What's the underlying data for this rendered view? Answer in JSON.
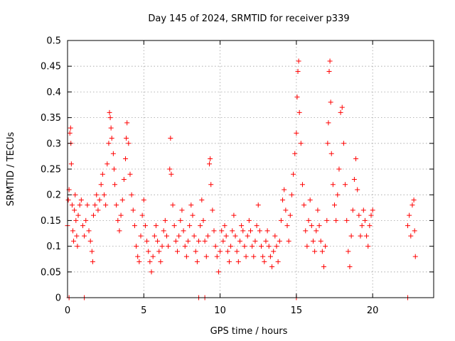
{
  "chart_data": {
    "type": "scatter",
    "title": "Day 145 of 2024, SRMTID for receiver p339",
    "xlabel": "GPS time / hours",
    "ylabel": "SRMTID / TECUs",
    "xlim": [
      0,
      24
    ],
    "ylim": [
      0,
      0.5
    ],
    "xticks": [
      0,
      5,
      10,
      15,
      20
    ],
    "xtick_labels": [
      "0",
      "5",
      "10",
      "15",
      "20"
    ],
    "yticks": [
      0,
      0.05,
      0.1,
      0.15,
      0.2,
      0.25,
      0.3,
      0.35,
      0.4,
      0.45,
      0.5
    ],
    "ytick_labels": [
      "0",
      "0.05",
      "0.1",
      "0.15",
      "0.2",
      "0.25",
      "0.3",
      "0.35",
      "0.4",
      "0.45",
      "0.5"
    ],
    "grid": true,
    "marker": "+",
    "color": "#ff0000",
    "series": [
      {
        "name": "SRMTID",
        "points": [
          [
            0.0,
            0.14
          ],
          [
            0.05,
            0.19
          ],
          [
            0.1,
            0.21
          ],
          [
            0.15,
            0.32
          ],
          [
            0.2,
            0.33
          ],
          [
            0.22,
            0.3
          ],
          [
            0.25,
            0.26
          ],
          [
            0.3,
            0.18
          ],
          [
            0.35,
            0.13
          ],
          [
            0.4,
            0.11
          ],
          [
            0.45,
            0.17
          ],
          [
            0.5,
            0.2
          ],
          [
            0.55,
            0.15
          ],
          [
            0.6,
            0.12
          ],
          [
            0.65,
            0.1
          ],
          [
            0.7,
            0.16
          ],
          [
            0.8,
            0.18
          ],
          [
            0.9,
            0.19
          ],
          [
            1.0,
            0.14
          ],
          [
            1.1,
            0.12
          ],
          [
            1.2,
            0.15
          ],
          [
            1.3,
            0.18
          ],
          [
            1.4,
            0.13
          ],
          [
            1.5,
            0.11
          ],
          [
            1.6,
            0.09
          ],
          [
            1.65,
            0.07
          ],
          [
            1.7,
            0.16
          ],
          [
            1.8,
            0.18
          ],
          [
            1.9,
            0.2
          ],
          [
            2.0,
            0.17
          ],
          [
            2.1,
            0.19
          ],
          [
            2.2,
            0.22
          ],
          [
            2.3,
            0.24
          ],
          [
            2.4,
            0.2
          ],
          [
            2.5,
            0.18
          ],
          [
            2.6,
            0.26
          ],
          [
            2.7,
            0.3
          ],
          [
            2.75,
            0.36
          ],
          [
            2.8,
            0.35
          ],
          [
            2.85,
            0.33
          ],
          [
            2.9,
            0.31
          ],
          [
            3.0,
            0.28
          ],
          [
            3.05,
            0.25
          ],
          [
            3.1,
            0.22
          ],
          [
            3.2,
            0.18
          ],
          [
            3.3,
            0.15
          ],
          [
            3.4,
            0.13
          ],
          [
            3.5,
            0.16
          ],
          [
            3.6,
            0.19
          ],
          [
            3.7,
            0.23
          ],
          [
            3.8,
            0.27
          ],
          [
            3.85,
            0.31
          ],
          [
            3.9,
            0.34
          ],
          [
            4.0,
            0.3
          ],
          [
            4.1,
            0.24
          ],
          [
            4.2,
            0.2
          ],
          [
            4.3,
            0.17
          ],
          [
            4.4,
            0.14
          ],
          [
            4.5,
            0.1
          ],
          [
            4.6,
            0.08
          ],
          [
            4.7,
            0.07
          ],
          [
            4.8,
            0.12
          ],
          [
            4.9,
            0.16
          ],
          [
            5.0,
            0.19
          ],
          [
            5.1,
            0.14
          ],
          [
            5.2,
            0.11
          ],
          [
            5.3,
            0.09
          ],
          [
            5.4,
            0.07
          ],
          [
            5.5,
            0.05
          ],
          [
            5.6,
            0.08
          ],
          [
            5.7,
            0.12
          ],
          [
            5.8,
            0.14
          ],
          [
            5.9,
            0.11
          ],
          [
            6.0,
            0.09
          ],
          [
            6.1,
            0.07
          ],
          [
            6.2,
            0.1
          ],
          [
            6.3,
            0.13
          ],
          [
            6.4,
            0.15
          ],
          [
            6.5,
            0.12
          ],
          [
            6.6,
            0.1
          ],
          [
            6.7,
            0.25
          ],
          [
            6.75,
            0.31
          ],
          [
            6.8,
            0.24
          ],
          [
            6.9,
            0.18
          ],
          [
            7.0,
            0.14
          ],
          [
            7.1,
            0.11
          ],
          [
            7.2,
            0.09
          ],
          [
            7.3,
            0.12
          ],
          [
            7.4,
            0.15
          ],
          [
            7.5,
            0.17
          ],
          [
            7.6,
            0.13
          ],
          [
            7.7,
            0.1
          ],
          [
            7.8,
            0.08
          ],
          [
            7.9,
            0.11
          ],
          [
            8.0,
            0.14
          ],
          [
            8.1,
            0.18
          ],
          [
            8.2,
            0.16
          ],
          [
            8.3,
            0.12
          ],
          [
            8.4,
            0.09
          ],
          [
            8.5,
            0.07
          ],
          [
            8.6,
            0.11
          ],
          [
            8.7,
            0.14
          ],
          [
            8.8,
            0.19
          ],
          [
            8.9,
            0.15
          ],
          [
            9.0,
            0.11
          ],
          [
            9.1,
            0.08
          ],
          [
            9.2,
            0.12
          ],
          [
            9.3,
            0.26
          ],
          [
            9.35,
            0.27
          ],
          [
            9.4,
            0.22
          ],
          [
            9.5,
            0.17
          ],
          [
            9.6,
            0.13
          ],
          [
            9.7,
            0.1
          ],
          [
            9.8,
            0.08
          ],
          [
            9.9,
            0.05
          ],
          [
            10.0,
            0.09
          ],
          [
            10.1,
            0.13
          ],
          [
            10.2,
            0.11
          ],
          [
            10.3,
            0.14
          ],
          [
            10.4,
            0.12
          ],
          [
            10.5,
            0.09
          ],
          [
            10.6,
            0.07
          ],
          [
            10.7,
            0.1
          ],
          [
            10.8,
            0.13
          ],
          [
            10.9,
            0.16
          ],
          [
            11.0,
            0.12
          ],
          [
            11.1,
            0.09
          ],
          [
            11.2,
            0.07
          ],
          [
            11.3,
            0.11
          ],
          [
            11.4,
            0.14
          ],
          [
            11.5,
            0.13
          ],
          [
            11.6,
            0.1
          ],
          [
            11.7,
            0.08
          ],
          [
            11.8,
            0.12
          ],
          [
            11.9,
            0.15
          ],
          [
            12.0,
            0.13
          ],
          [
            12.1,
            0.1
          ],
          [
            12.2,
            0.08
          ],
          [
            12.3,
            0.11
          ],
          [
            12.4,
            0.14
          ],
          [
            12.5,
            0.18
          ],
          [
            12.6,
            0.13
          ],
          [
            12.7,
            0.1
          ],
          [
            12.8,
            0.08
          ],
          [
            12.9,
            0.07
          ],
          [
            13.0,
            0.11
          ],
          [
            13.1,
            0.13
          ],
          [
            13.2,
            0.1
          ],
          [
            13.3,
            0.08
          ],
          [
            13.4,
            0.06
          ],
          [
            13.5,
            0.09
          ],
          [
            13.6,
            0.12
          ],
          [
            13.7,
            0.1
          ],
          [
            13.8,
            0.07
          ],
          [
            13.9,
            0.11
          ],
          [
            14.0,
            0.15
          ],
          [
            14.1,
            0.19
          ],
          [
            14.2,
            0.21
          ],
          [
            14.3,
            0.17
          ],
          [
            14.4,
            0.14
          ],
          [
            14.5,
            0.11
          ],
          [
            14.6,
            0.16
          ],
          [
            14.7,
            0.2
          ],
          [
            14.8,
            0.24
          ],
          [
            14.9,
            0.28
          ],
          [
            15.0,
            0.32
          ],
          [
            15.05,
            0.39
          ],
          [
            15.1,
            0.44
          ],
          [
            15.15,
            0.46
          ],
          [
            15.2,
            0.36
          ],
          [
            15.3,
            0.3
          ],
          [
            15.4,
            0.22
          ],
          [
            15.5,
            0.18
          ],
          [
            15.6,
            0.13
          ],
          [
            15.7,
            0.1
          ],
          [
            15.8,
            0.15
          ],
          [
            15.9,
            0.19
          ],
          [
            16.0,
            0.14
          ],
          [
            16.1,
            0.11
          ],
          [
            16.2,
            0.09
          ],
          [
            16.3,
            0.13
          ],
          [
            16.4,
            0.17
          ],
          [
            16.5,
            0.14
          ],
          [
            16.6,
            0.11
          ],
          [
            16.7,
            0.09
          ],
          [
            16.8,
            0.06
          ],
          [
            16.9,
            0.1
          ],
          [
            17.0,
            0.15
          ],
          [
            17.05,
            0.3
          ],
          [
            17.1,
            0.34
          ],
          [
            17.15,
            0.44
          ],
          [
            17.2,
            0.46
          ],
          [
            17.25,
            0.38
          ],
          [
            17.3,
            0.28
          ],
          [
            17.4,
            0.22
          ],
          [
            17.5,
            0.18
          ],
          [
            17.6,
            0.15
          ],
          [
            17.7,
            0.2
          ],
          [
            17.8,
            0.25
          ],
          [
            17.9,
            0.36
          ],
          [
            18.0,
            0.37
          ],
          [
            18.1,
            0.3
          ],
          [
            18.2,
            0.22
          ],
          [
            18.3,
            0.15
          ],
          [
            18.4,
            0.09
          ],
          [
            18.5,
            0.06
          ],
          [
            18.6,
            0.12
          ],
          [
            18.7,
            0.17
          ],
          [
            18.8,
            0.23
          ],
          [
            18.9,
            0.27
          ],
          [
            19.0,
            0.21
          ],
          [
            19.1,
            0.16
          ],
          [
            19.2,
            0.12
          ],
          [
            19.3,
            0.14
          ],
          [
            19.4,
            0.17
          ],
          [
            19.5,
            0.15
          ],
          [
            19.6,
            0.12
          ],
          [
            19.7,
            0.1
          ],
          [
            19.8,
            0.14
          ],
          [
            19.9,
            0.16
          ],
          [
            20.0,
            0.17
          ],
          [
            22.3,
            0.14
          ],
          [
            22.4,
            0.16
          ],
          [
            22.5,
            0.12
          ],
          [
            22.6,
            0.18
          ],
          [
            22.7,
            0.19
          ],
          [
            22.75,
            0.13
          ],
          [
            22.8,
            0.08
          ],
          [
            0.1,
            0.0
          ],
          [
            1.1,
            0.0
          ],
          [
            8.6,
            0.0
          ],
          [
            9.0,
            0.0
          ],
          [
            15.0,
            0.0
          ],
          [
            22.3,
            0.0
          ]
        ]
      }
    ]
  }
}
